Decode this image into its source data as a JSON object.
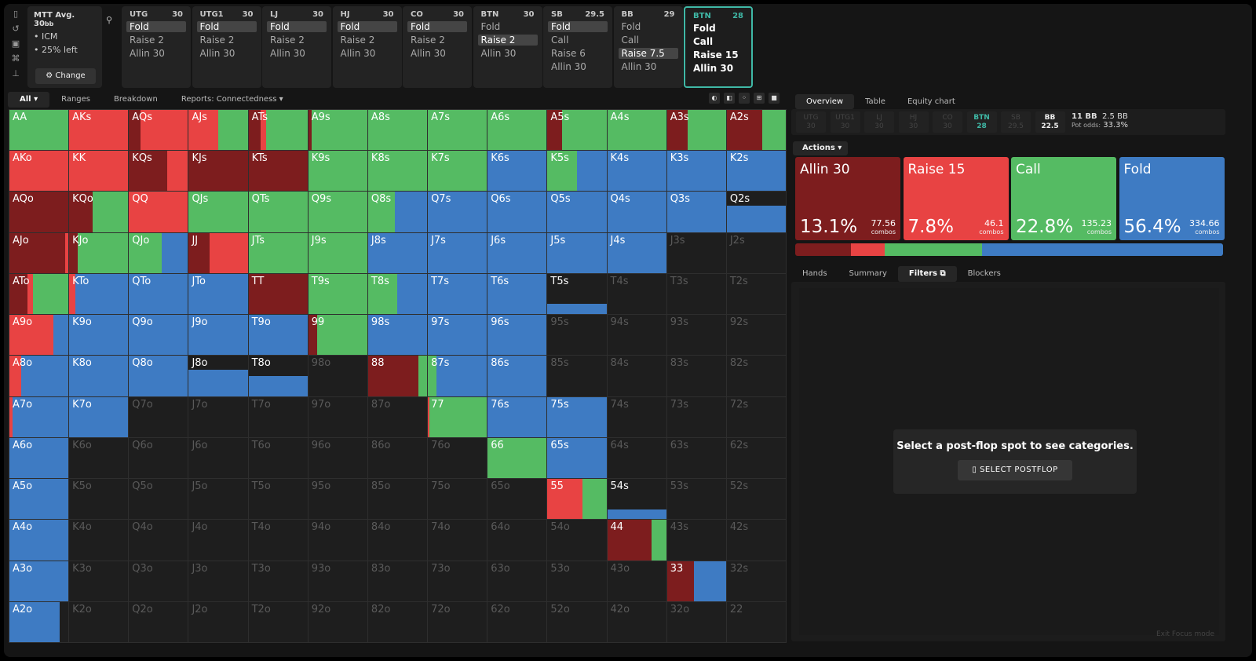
{
  "sidebar_icons": [
    "bookmark-icon",
    "history-icon",
    "save-icon",
    "gamepad-icon",
    "align-icon"
  ],
  "mtt": {
    "title": "MTT",
    "avg": "Avg. 30",
    "avg_unit": "bb",
    "icm": "ICM",
    "left": "25% left",
    "change": "Change"
  },
  "positions": [
    {
      "name": "UTG",
      "stack": "30",
      "actions": [
        "Fold",
        "Raise 2",
        "Allin 30"
      ],
      "sel": 0
    },
    {
      "name": "UTG1",
      "stack": "30",
      "actions": [
        "Fold",
        "Raise 2",
        "Allin 30"
      ],
      "sel": 0
    },
    {
      "name": "LJ",
      "stack": "30",
      "actions": [
        "Fold",
        "Raise 2",
        "Allin 30"
      ],
      "sel": 0
    },
    {
      "name": "HJ",
      "stack": "30",
      "actions": [
        "Fold",
        "Raise 2",
        "Allin 30"
      ],
      "sel": 0
    },
    {
      "name": "CO",
      "stack": "30",
      "actions": [
        "Fold",
        "Raise 2",
        "Allin 30"
      ],
      "sel": 0
    },
    {
      "name": "BTN",
      "stack": "30",
      "actions": [
        "Fold",
        "Raise 2",
        "Allin 30"
      ],
      "sel": 1
    },
    {
      "name": "SB",
      "stack": "29.5",
      "actions": [
        "Fold",
        "Call",
        "Raise 6",
        "Allin 30"
      ],
      "sel": 0
    },
    {
      "name": "BB",
      "stack": "29",
      "actions": [
        "Fold",
        "Call",
        "Raise 7.5",
        "Allin 30"
      ],
      "sel": 2
    },
    {
      "name": "BTN",
      "stack": "28",
      "actions": [
        "Fold",
        "Call",
        "Raise 15",
        "Allin 30"
      ],
      "sel": -1,
      "current": true
    }
  ],
  "tabs": {
    "all": "All ▾",
    "ranges": "Ranges",
    "breakdown": "Breakdown",
    "reports": "Reports: Connectedness ▾"
  },
  "colors": {
    "allin": "#7d1d1e",
    "raise": "#e84343",
    "call": "#55bb63",
    "fold": "#3e7bc3"
  },
  "hands": [
    [
      "AA",
      "AKs",
      "AQs",
      "AJs",
      "ATs",
      "A9s",
      "A8s",
      "A7s",
      "A6s",
      "A5s",
      "A4s",
      "A3s",
      "A2s"
    ],
    [
      "AKo",
      "KK",
      "KQs",
      "KJs",
      "KTs",
      "K9s",
      "K8s",
      "K7s",
      "K6s",
      "K5s",
      "K4s",
      "K3s",
      "K2s"
    ],
    [
      "AQo",
      "KQo",
      "QQ",
      "QJs",
      "QTs",
      "Q9s",
      "Q8s",
      "Q7s",
      "Q6s",
      "Q5s",
      "Q4s",
      "Q3s",
      "Q2s"
    ],
    [
      "AJo",
      "KJo",
      "QJo",
      "JJ",
      "JTs",
      "J9s",
      "J8s",
      "J7s",
      "J6s",
      "J5s",
      "J4s",
      "J3s",
      "J2s"
    ],
    [
      "ATo",
      "KTo",
      "QTo",
      "JTo",
      "TT",
      "T9s",
      "T8s",
      "T7s",
      "T6s",
      "T5s",
      "T4s",
      "T3s",
      "T2s"
    ],
    [
      "A9o",
      "K9o",
      "Q9o",
      "J9o",
      "T9o",
      "99",
      "98s",
      "97s",
      "96s",
      "95s",
      "94s",
      "93s",
      "92s"
    ],
    [
      "A8o",
      "K8o",
      "Q8o",
      "J8o",
      "T8o",
      "98o",
      "88",
      "87s",
      "86s",
      "85s",
      "84s",
      "83s",
      "82s"
    ],
    [
      "A7o",
      "K7o",
      "Q7o",
      "J7o",
      "T7o",
      "97o",
      "87o",
      "77",
      "76s",
      "75s",
      "74s",
      "73s",
      "72s"
    ],
    [
      "A6o",
      "K6o",
      "Q6o",
      "J6o",
      "T6o",
      "96o",
      "86o",
      "76o",
      "66",
      "65s",
      "64s",
      "63s",
      "62s"
    ],
    [
      "A5o",
      "K5o",
      "Q5o",
      "J5o",
      "T5o",
      "95o",
      "85o",
      "75o",
      "65o",
      "55",
      "54s",
      "53s",
      "52s"
    ],
    [
      "A4o",
      "K4o",
      "Q4o",
      "J4o",
      "T4o",
      "94o",
      "84o",
      "74o",
      "64o",
      "54o",
      "44",
      "43s",
      "42s"
    ],
    [
      "A3o",
      "K3o",
      "Q3o",
      "J3o",
      "T3o",
      "93o",
      "83o",
      "73o",
      "63o",
      "53o",
      "43o",
      "33",
      "32s"
    ],
    [
      "A2o",
      "K2o",
      "Q2o",
      "J2o",
      "T2o",
      "92o",
      "82o",
      "72o",
      "62o",
      "52o",
      "42o",
      "32o",
      "22"
    ]
  ],
  "strategy": {
    "AA": [
      0,
      0,
      100,
      0
    ],
    "AKs": [
      0,
      100,
      0,
      0
    ],
    "AQs": [
      20,
      80,
      0,
      0
    ],
    "AJs": [
      0,
      50,
      50,
      0
    ],
    "ATs": [
      20,
      10,
      70,
      0
    ],
    "A9s": [
      5,
      0,
      95,
      0
    ],
    "A8s": [
      0,
      0,
      100,
      0
    ],
    "A7s": [
      0,
      0,
      100,
      0
    ],
    "A6s": [
      0,
      0,
      100,
      0
    ],
    "A5s": [
      25,
      0,
      75,
      0
    ],
    "A4s": [
      0,
      0,
      100,
      0
    ],
    "A3s": [
      35,
      0,
      65,
      0
    ],
    "A2s": [
      60,
      0,
      40,
      0
    ],
    "AKo": [
      0,
      100,
      0,
      0
    ],
    "KK": [
      0,
      100,
      0,
      0
    ],
    "KQs": [
      65,
      35,
      0,
      0
    ],
    "KJs": [
      100,
      0,
      0,
      0
    ],
    "KTs": [
      100,
      0,
      0,
      0
    ],
    "K9s": [
      0,
      0,
      100,
      0
    ],
    "K8s": [
      0,
      0,
      100,
      0
    ],
    "K7s": [
      0,
      0,
      100,
      0
    ],
    "K6s": [
      0,
      0,
      0,
      100
    ],
    "K5s": [
      0,
      0,
      50,
      50
    ],
    "K4s": [
      0,
      0,
      0,
      100
    ],
    "K3s": [
      0,
      0,
      0,
      100
    ],
    "K2s": [
      0,
      0,
      0,
      100
    ],
    "AQo": [
      100,
      0,
      0,
      0
    ],
    "KQo": [
      40,
      0,
      60,
      0
    ],
    "QQ": [
      0,
      100,
      0,
      0
    ],
    "QJs": [
      0,
      0,
      100,
      0
    ],
    "QTs": [
      0,
      0,
      100,
      0
    ],
    "Q9s": [
      0,
      0,
      100,
      0
    ],
    "Q8s": [
      0,
      0,
      45,
      55
    ],
    "Q7s": [
      0,
      0,
      0,
      100
    ],
    "Q6s": [
      0,
      0,
      0,
      100
    ],
    "Q5s": [
      0,
      0,
      0,
      100
    ],
    "Q4s": [
      0,
      0,
      0,
      100
    ],
    "Q3s": [
      0,
      0,
      0,
      100
    ],
    "Q2s": [
      0,
      0,
      0,
      65
    ],
    "AJo": [
      95,
      5,
      0,
      0
    ],
    "KJo": [
      15,
      0,
      85,
      0
    ],
    "QJo": [
      0,
      0,
      55,
      45
    ],
    "JJ": [
      35,
      65,
      0,
      0
    ],
    "JTs": [
      0,
      0,
      100,
      0
    ],
    "J9s": [
      0,
      0,
      100,
      0
    ],
    "J8s": [
      0,
      0,
      0,
      100
    ],
    "J7s": [
      0,
      0,
      0,
      100
    ],
    "J6s": [
      0,
      0,
      0,
      100
    ],
    "J5s": [
      0,
      0,
      0,
      100
    ],
    "J4s": [
      0,
      0,
      0,
      100
    ],
    "J3s": [
      0,
      0,
      0,
      0
    ],
    "J2s": [
      0,
      0,
      0,
      0
    ],
    "ATo": [
      30,
      10,
      60,
      0
    ],
    "KTo": [
      0,
      10,
      0,
      90
    ],
    "QTo": [
      0,
      0,
      0,
      100
    ],
    "JTo": [
      0,
      0,
      0,
      100
    ],
    "TT": [
      100,
      0,
      0,
      0
    ],
    "T9s": [
      0,
      0,
      100,
      0
    ],
    "T8s": [
      0,
      0,
      50,
      50
    ],
    "T7s": [
      0,
      0,
      0,
      100
    ],
    "T6s": [
      0,
      0,
      0,
      100
    ],
    "T5s": [
      0,
      0,
      0,
      25
    ],
    "T4s": [
      0,
      0,
      0,
      0
    ],
    "T3s": [
      0,
      0,
      0,
      0
    ],
    "T2s": [
      0,
      0,
      0,
      0
    ],
    "A9o": [
      0,
      75,
      0,
      25
    ],
    "K9o": [
      0,
      0,
      0,
      100
    ],
    "Q9o": [
      0,
      0,
      0,
      100
    ],
    "J9o": [
      0,
      0,
      0,
      100
    ],
    "T9o": [
      0,
      0,
      0,
      100
    ],
    "99": [
      15,
      0,
      85,
      0
    ],
    "98s": [
      0,
      0,
      0,
      100
    ],
    "97s": [
      0,
      0,
      0,
      100
    ],
    "96s": [
      0,
      0,
      0,
      100
    ],
    "95s": [
      0,
      0,
      0,
      0
    ],
    "94s": [
      0,
      0,
      0,
      0
    ],
    "93s": [
      0,
      0,
      0,
      0
    ],
    "92s": [
      0,
      0,
      0,
      0
    ],
    "A8o": [
      0,
      20,
      0,
      80
    ],
    "K8o": [
      0,
      0,
      0,
      100
    ],
    "Q8o": [
      0,
      0,
      0,
      100
    ],
    "J8o": [
      0,
      0,
      0,
      65
    ],
    "T8o": [
      0,
      0,
      0,
      50
    ],
    "98o": [
      0,
      0,
      0,
      0
    ],
    "88": [
      85,
      0,
      15,
      0
    ],
    "87s": [
      0,
      0,
      15,
      85
    ],
    "86s": [
      0,
      0,
      0,
      100
    ],
    "85s": [
      0,
      0,
      0,
      0
    ],
    "84s": [
      0,
      0,
      0,
      0
    ],
    "83s": [
      0,
      0,
      0,
      0
    ],
    "82s": [
      0,
      0,
      0,
      0
    ],
    "A7o": [
      0,
      5,
      0,
      95
    ],
    "K7o": [
      0,
      0,
      0,
      100
    ],
    "77": [
      0,
      2,
      98,
      0
    ],
    "76s": [
      0,
      0,
      0,
      100
    ],
    "75s": [
      0,
      0,
      0,
      100
    ],
    "A6o": [
      0,
      0,
      0,
      100
    ],
    "66": [
      0,
      0,
      100,
      0
    ],
    "65s": [
      0,
      0,
      0,
      100
    ],
    "A5o": [
      0,
      0,
      0,
      100
    ],
    "55": [
      0,
      60,
      40,
      0
    ],
    "54s": [
      0,
      0,
      0,
      25
    ],
    "A4o": [
      0,
      0,
      0,
      100
    ],
    "44": [
      75,
      0,
      25,
      0
    ],
    "A3o": [
      0,
      0,
      0,
      100
    ],
    "33": [
      45,
      0,
      0,
      55
    ],
    "A2o": [
      0,
      0,
      0,
      85
    ]
  },
  "right_tabs": {
    "overview": "Overview",
    "table": "Table",
    "equity": "Equity chart"
  },
  "pos_strip": [
    {
      "n": "UTG",
      "s": "30"
    },
    {
      "n": "UTG1",
      "s": "30"
    },
    {
      "n": "LJ",
      "s": "30"
    },
    {
      "n": "HJ",
      "s": "30"
    },
    {
      "n": "CO",
      "s": "30"
    },
    {
      "n": "BTN",
      "s": "28",
      "cls": "btn"
    },
    {
      "n": "SB",
      "s": "29.5"
    },
    {
      "n": "BB",
      "s": "22.5",
      "cls": "bb"
    }
  ],
  "pot": {
    "bb": "11 BB",
    "extra": "2.5 BB",
    "odds_label": "Pot odds:",
    "odds": "33.3%"
  },
  "actions_label": "Actions ▾",
  "action_cards": [
    {
      "name": "Allin 30",
      "pct": "13.1%",
      "combos": "77.56",
      "unit": "combos",
      "color": "#7d1d1e",
      "freq": 13.1
    },
    {
      "name": "Raise 15",
      "pct": "7.8%",
      "combos": "46.1",
      "unit": "combos",
      "color": "#e84343",
      "freq": 7.8
    },
    {
      "name": "Call",
      "pct": "22.8%",
      "combos": "135.23",
      "unit": "combos",
      "color": "#55bb63",
      "freq": 22.8
    },
    {
      "name": "Fold",
      "pct": "56.4%",
      "combos": "334.66",
      "unit": "combos",
      "color": "#3e7bc3",
      "freq": 56.4
    }
  ],
  "bottom_tabs": {
    "hands": "Hands",
    "summary": "Summary",
    "filters": "Filters ⧉",
    "blockers": "Blockers"
  },
  "filters_panel": {
    "message": "Select a post-flop spot to see categories.",
    "button": "SELECT POSTFLOP"
  },
  "exit_focus": "Exit Focus mode"
}
